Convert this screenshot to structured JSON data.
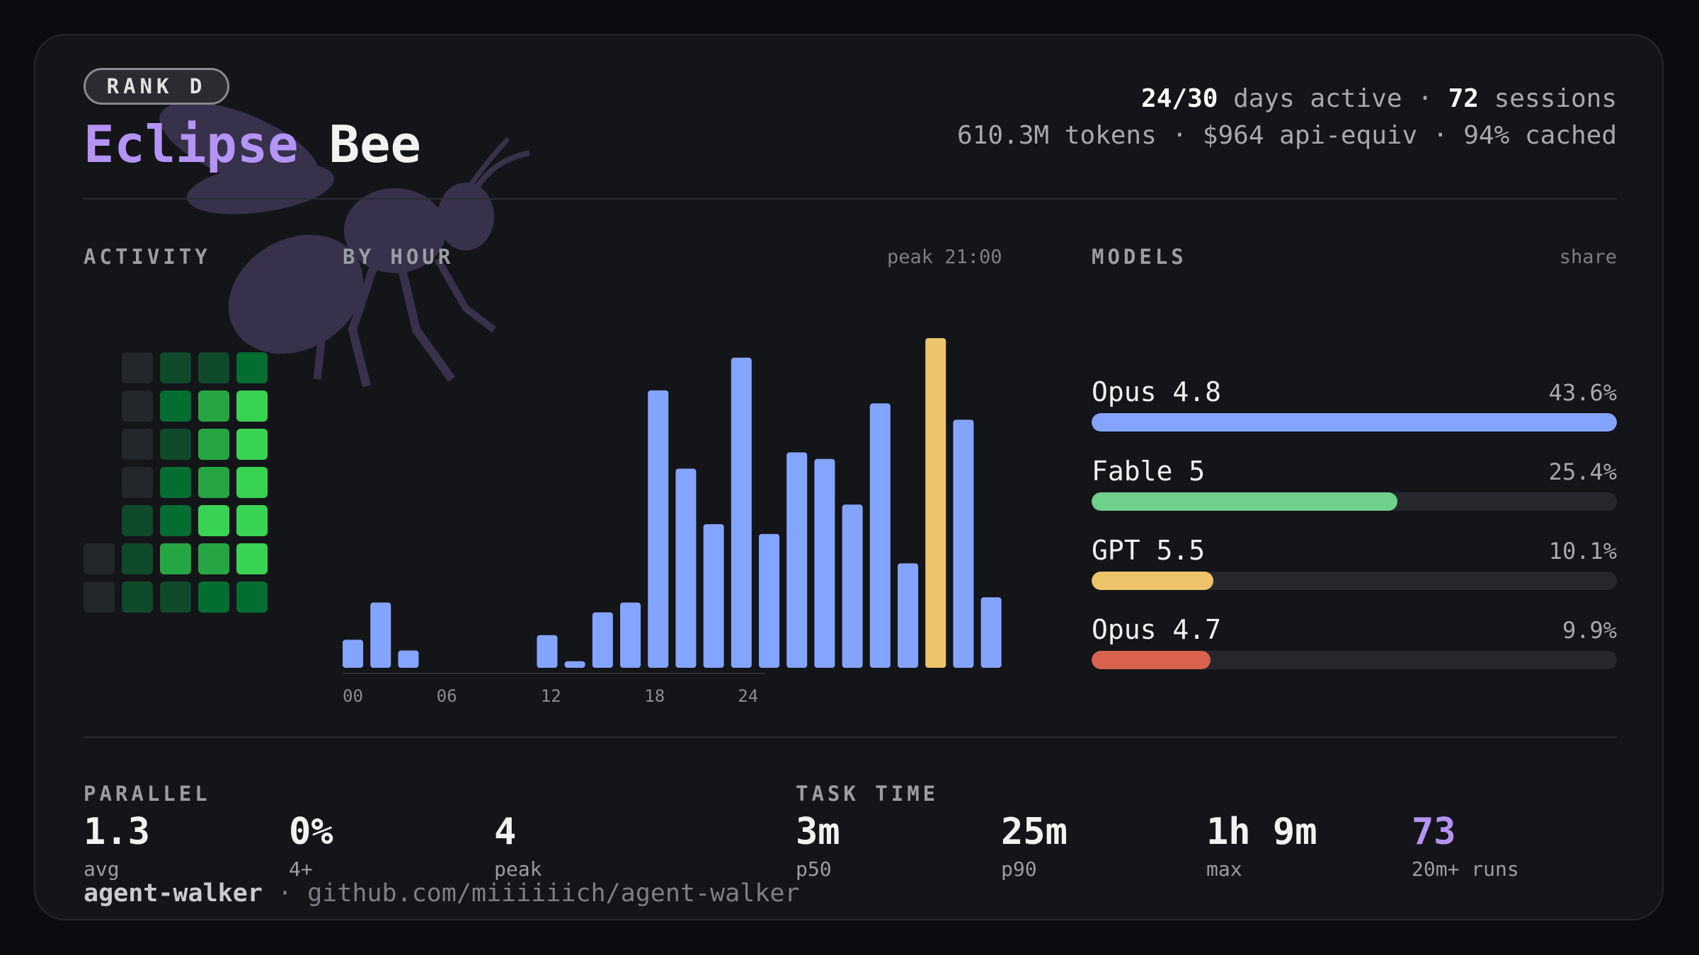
{
  "header": {
    "rank_badge": "RANK D",
    "title_first": "Eclipse",
    "title_second": "Bee",
    "days_active_value": "24/30",
    "days_active_label": "days active",
    "sep": "·",
    "sessions_value": "72",
    "sessions_label": "sessions",
    "line2": "610.3M tokens · $964 api-equiv · 94% cached"
  },
  "colors": {
    "accent_purple": "#b494f5",
    "bar_blue": "#84a5ff",
    "bar_peak": "#eec46a",
    "green_levels": [
      "#23262b",
      "#0f4a2a",
      "#046d32",
      "#26a642",
      "#39d353"
    ]
  },
  "activity": {
    "label": "ACTIVITY",
    "grid": [
      [
        null,
        0,
        1,
        1,
        2
      ],
      [
        null,
        0,
        2,
        3,
        4
      ],
      [
        null,
        0,
        1,
        3,
        4
      ],
      [
        null,
        0,
        2,
        3,
        4
      ],
      [
        null,
        1,
        2,
        4,
        4
      ],
      [
        0,
        1,
        3,
        3,
        4
      ],
      [
        0,
        1,
        1,
        2,
        2
      ]
    ]
  },
  "by_hour": {
    "label": "BY HOUR",
    "peak_text": "peak 21:00",
    "peak_hour": 21,
    "ticks": [
      "00",
      "06",
      "12",
      "18",
      "24"
    ]
  },
  "chart_data": {
    "type": "bar",
    "categories": [
      "00",
      "01",
      "02",
      "03",
      "04",
      "05",
      "06",
      "07",
      "08",
      "09",
      "10",
      "11",
      "12",
      "13",
      "14",
      "15",
      "16",
      "17",
      "18",
      "19",
      "20",
      "21",
      "22",
      "23"
    ],
    "values": [
      8.6,
      20,
      5.3,
      0,
      0,
      0,
      0,
      10,
      2,
      17,
      20,
      85,
      61,
      44,
      95,
      41,
      66,
      64,
      50,
      81,
      32,
      101,
      76,
      21.6
    ],
    "title": "",
    "xlabel": "",
    "ylabel": ""
  },
  "models": {
    "label": "MODELS",
    "share_label": "share",
    "items": [
      {
        "name": "Opus 4.8",
        "pct_text": "43.6%",
        "share": 43.6,
        "color": "#84a5ff"
      },
      {
        "name": "Fable 5",
        "pct_text": "25.4%",
        "share": 25.4,
        "color": "#6ed08a"
      },
      {
        "name": "GPT 5.5",
        "pct_text": "10.1%",
        "share": 10.1,
        "color": "#eec46a"
      },
      {
        "name": "Opus 4.7",
        "pct_text": "9.9%",
        "share": 9.9,
        "color": "#d9624f"
      }
    ]
  },
  "parallel": {
    "label": "PARALLEL",
    "stats": [
      {
        "value": "1.3",
        "key": "avg"
      },
      {
        "value": "0%",
        "key": "4+"
      },
      {
        "value": "4",
        "key": "peak"
      }
    ]
  },
  "task_time": {
    "label": "TASK TIME",
    "stats": [
      {
        "value": "3m",
        "key": "p50"
      },
      {
        "value": "25m",
        "key": "p90"
      },
      {
        "value": "1h 9m",
        "key": "max"
      },
      {
        "value": "73",
        "key": "20m+ runs"
      }
    ]
  },
  "footer": {
    "repo_name": "agent-walker",
    "sep": "·",
    "repo_url": "github.com/miiiiiich/agent-walker"
  }
}
